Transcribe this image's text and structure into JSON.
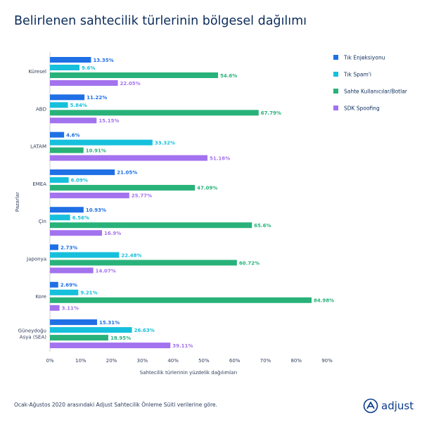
{
  "title": "Belirlenen sahtecilik türlerinin bölgesel dağılımı",
  "footnote": "Ocak-Ağustos 2020 arasındaki Adjust Sahtecilik Önleme Süiti verilerine göre.",
  "brand": "adjust",
  "chart_data": {
    "type": "bar",
    "orientation": "horizontal",
    "categories": [
      "Küresel",
      "ABD",
      "LATAM",
      "EMEA",
      "Çin",
      "Japonya",
      "Kore",
      "Güneydoğu Asya (SEA)"
    ],
    "series": [
      {
        "name": "Tık Enjeksiyonu",
        "color": "#1f6fe5",
        "labels": [
          "13.35%",
          "11.22%",
          "4.6%",
          "21.05%",
          "10.93%",
          "2.73%",
          "2.69%",
          "15.31%"
        ],
        "values": [
          13.35,
          11.22,
          4.6,
          21.05,
          10.93,
          2.73,
          2.69,
          15.31
        ]
      },
      {
        "name": "Tık Spam'i",
        "color": "#16c0dc",
        "labels": [
          "9.6%",
          "5.84%",
          "33.32%",
          "6.09%",
          "6.56%",
          "22.48%",
          "9.21%",
          "26.63%"
        ],
        "values": [
          9.6,
          5.84,
          33.32,
          6.09,
          6.56,
          22.48,
          9.21,
          26.63
        ]
      },
      {
        "name": "Sahte Kullanıcılar/Botlar",
        "color": "#28b27a",
        "labels": [
          "54.6%",
          "67.79%",
          "10.91%",
          "47.09%",
          "65.6%",
          "60.72%",
          "84.98%",
          "18.95%"
        ],
        "values": [
          54.6,
          67.79,
          10.91,
          47.09,
          65.6,
          60.72,
          84.98,
          18.95
        ]
      },
      {
        "name": "SDK Spoofing",
        "color": "#a372ee",
        "labels": [
          "22.05%",
          "15.15%",
          "51.16%",
          "25.77%",
          "16.9%",
          "14.07%",
          "3.11%",
          "39.11%"
        ],
        "values": [
          22.05,
          15.15,
          51.16,
          25.77,
          16.9,
          14.07,
          3.11,
          39.11
        ]
      }
    ],
    "xlabel": "Sahtecilik türlerinin yüzdelik dağılımları",
    "ylabel": "Pazarlar",
    "xlim": [
      0,
      90
    ],
    "xticks": [
      "0%",
      "10%",
      "20%",
      "30%",
      "40%",
      "50%",
      "60%",
      "70%",
      "80%",
      "90%"
    ],
    "grid": false,
    "legend": "right"
  }
}
